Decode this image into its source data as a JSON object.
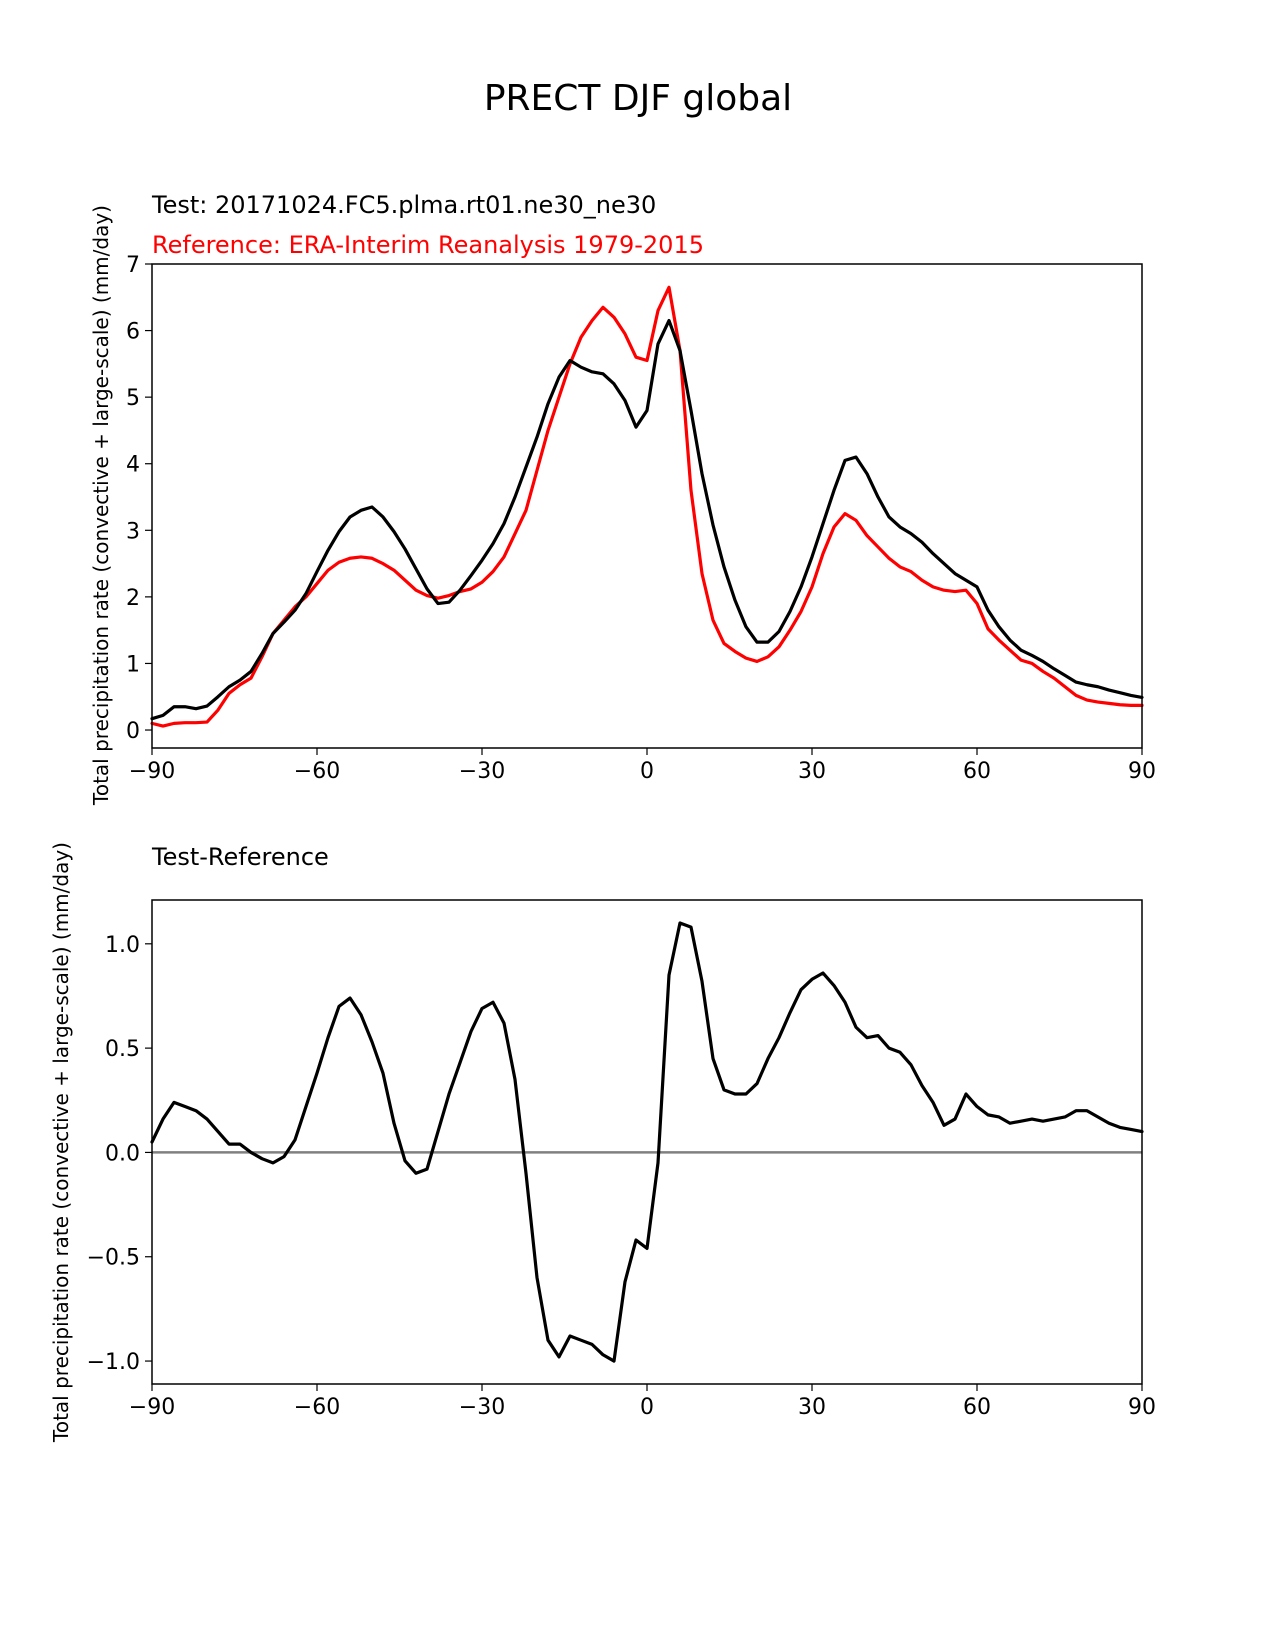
{
  "figure": {
    "title": "PRECT DJF global"
  },
  "chart_data": [
    {
      "type": "line",
      "title_test": "Test: 20171024.FC5.plma.rt01.ne30_ne30",
      "title_reference": "Reference: ERA-Interim Reanalysis 1979-2015",
      "xlabel": "",
      "ylabel": "Total precipitation rate (convective + large-scale) (mm/day)",
      "xlim": [
        -90,
        90
      ],
      "ylim": [
        -0.27,
        7
      ],
      "xticks": [
        -90,
        -60,
        -30,
        0,
        30,
        60,
        90
      ],
      "xtick_labels": [
        "−90",
        "−60",
        "−30",
        "0",
        "30",
        "60",
        "90"
      ],
      "yticks": [
        0,
        1,
        2,
        3,
        4,
        5,
        6,
        7
      ],
      "ytick_labels": [
        "0",
        "1",
        "2",
        "3",
        "4",
        "5",
        "6",
        "7"
      ],
      "grid": false,
      "series": [
        {
          "name": "Test",
          "color": "#000000",
          "x": [
            -90,
            -88,
            -86,
            -84,
            -82,
            -80,
            -78,
            -76,
            -74,
            -72,
            -70,
            -68,
            -66,
            -64,
            -62,
            -60,
            -58,
            -56,
            -54,
            -52,
            -50,
            -48,
            -46,
            -44,
            -42,
            -40,
            -38,
            -36,
            -34,
            -32,
            -30,
            -28,
            -26,
            -24,
            -22,
            -20,
            -18,
            -16,
            -14,
            -12,
            -10,
            -8,
            -6,
            -4,
            -2,
            0,
            2,
            4,
            6,
            8,
            10,
            12,
            14,
            16,
            18,
            20,
            22,
            24,
            26,
            28,
            30,
            32,
            34,
            36,
            38,
            40,
            42,
            44,
            46,
            48,
            50,
            52,
            54,
            56,
            58,
            60,
            62,
            64,
            66,
            68,
            70,
            72,
            74,
            76,
            78,
            80,
            82,
            84,
            86,
            88,
            90
          ],
          "values": [
            0.17,
            0.22,
            0.35,
            0.35,
            0.32,
            0.36,
            0.5,
            0.65,
            0.75,
            0.88,
            1.15,
            1.45,
            1.62,
            1.8,
            2.05,
            2.38,
            2.7,
            2.98,
            3.2,
            3.3,
            3.35,
            3.2,
            2.98,
            2.72,
            2.42,
            2.12,
            1.9,
            1.92,
            2.1,
            2.32,
            2.55,
            2.8,
            3.1,
            3.5,
            3.95,
            4.4,
            4.9,
            5.3,
            5.55,
            5.45,
            5.38,
            5.35,
            5.2,
            4.95,
            4.55,
            4.8,
            5.8,
            6.15,
            5.7,
            4.8,
            3.85,
            3.08,
            2.45,
            1.95,
            1.55,
            1.32,
            1.32,
            1.48,
            1.78,
            2.15,
            2.6,
            3.1,
            3.6,
            4.05,
            4.1,
            3.85,
            3.5,
            3.2,
            3.05,
            2.95,
            2.82,
            2.65,
            2.5,
            2.35,
            2.25,
            2.15,
            1.8,
            1.55,
            1.35,
            1.2,
            1.12,
            1.03,
            0.92,
            0.82,
            0.72,
            0.68,
            0.65,
            0.6,
            0.56,
            0.52,
            0.49
          ]
        },
        {
          "name": "Reference",
          "color": "#ff0000",
          "x": [
            -90,
            -88,
            -86,
            -84,
            -82,
            -80,
            -78,
            -76,
            -74,
            -72,
            -70,
            -68,
            -66,
            -64,
            -62,
            -60,
            -58,
            -56,
            -54,
            -52,
            -50,
            -48,
            -46,
            -44,
            -42,
            -40,
            -38,
            -36,
            -34,
            -32,
            -30,
            -28,
            -26,
            -24,
            -22,
            -20,
            -18,
            -16,
            -14,
            -12,
            -10,
            -8,
            -6,
            -4,
            -2,
            0,
            2,
            4,
            6,
            8,
            10,
            12,
            14,
            16,
            18,
            20,
            22,
            24,
            26,
            28,
            30,
            32,
            34,
            36,
            38,
            40,
            42,
            44,
            46,
            48,
            50,
            52,
            54,
            56,
            58,
            60,
            62,
            64,
            66,
            68,
            70,
            72,
            74,
            76,
            78,
            80,
            82,
            84,
            86,
            88,
            90
          ],
          "values": [
            0.1,
            0.06,
            0.1,
            0.11,
            0.11,
            0.12,
            0.3,
            0.55,
            0.68,
            0.78,
            1.1,
            1.45,
            1.65,
            1.85,
            2.0,
            2.2,
            2.4,
            2.52,
            2.58,
            2.6,
            2.58,
            2.5,
            2.4,
            2.25,
            2.1,
            2.02,
            1.98,
            2.02,
            2.08,
            2.12,
            2.22,
            2.38,
            2.6,
            2.95,
            3.3,
            3.9,
            4.5,
            5.0,
            5.5,
            5.9,
            6.15,
            6.35,
            6.2,
            5.95,
            5.6,
            5.55,
            6.3,
            6.65,
            5.7,
            3.6,
            2.35,
            1.65,
            1.3,
            1.18,
            1.08,
            1.03,
            1.1,
            1.25,
            1.5,
            1.78,
            2.15,
            2.65,
            3.05,
            3.25,
            3.15,
            2.92,
            2.75,
            2.58,
            2.45,
            2.38,
            2.25,
            2.15,
            2.1,
            2.08,
            2.1,
            1.9,
            1.52,
            1.35,
            1.2,
            1.05,
            1.0,
            0.88,
            0.78,
            0.65,
            0.52,
            0.45,
            0.42,
            0.4,
            0.38,
            0.37,
            0.37
          ]
        }
      ]
    },
    {
      "type": "line",
      "title": "Test-Reference",
      "xlabel": "",
      "ylabel": "Total precipitation rate (convective + large-scale) (mm/day)",
      "xlim": [
        -90,
        90
      ],
      "ylim": [
        -1.11,
        1.21
      ],
      "xticks": [
        -90,
        -60,
        -30,
        0,
        30,
        60,
        90
      ],
      "xtick_labels": [
        "−90",
        "−60",
        "−30",
        "0",
        "30",
        "60",
        "90"
      ],
      "yticks": [
        -1.0,
        -0.5,
        0.0,
        0.5,
        1.0
      ],
      "ytick_labels": [
        "−1.0",
        "−0.5",
        "0.0",
        "0.5",
        "1.0"
      ],
      "grid": false,
      "zero_line": {
        "y": 0,
        "color": "#808080"
      },
      "series": [
        {
          "name": "Test-Reference",
          "color": "#000000",
          "x": [
            -90,
            -88,
            -86,
            -84,
            -82,
            -80,
            -78,
            -76,
            -74,
            -72,
            -70,
            -68,
            -66,
            -64,
            -62,
            -60,
            -58,
            -56,
            -54,
            -52,
            -50,
            -48,
            -46,
            -44,
            -42,
            -40,
            -38,
            -36,
            -34,
            -32,
            -30,
            -28,
            -26,
            -24,
            -22,
            -20,
            -18,
            -16,
            -14,
            -12,
            -10,
            -8,
            -6,
            -4,
            -2,
            0,
            2,
            4,
            6,
            8,
            10,
            12,
            14,
            16,
            18,
            20,
            22,
            24,
            26,
            28,
            30,
            32,
            34,
            36,
            38,
            40,
            42,
            44,
            46,
            48,
            50,
            52,
            54,
            56,
            58,
            60,
            62,
            64,
            66,
            68,
            70,
            72,
            74,
            76,
            78,
            80,
            82,
            84,
            86,
            88,
            90
          ],
          "values": [
            0.05,
            0.16,
            0.24,
            0.22,
            0.2,
            0.16,
            0.1,
            0.04,
            0.04,
            0.0,
            -0.03,
            -0.05,
            -0.02,
            0.06,
            0.22,
            0.38,
            0.55,
            0.7,
            0.74,
            0.66,
            0.53,
            0.38,
            0.14,
            -0.04,
            -0.1,
            -0.08,
            0.1,
            0.28,
            0.43,
            0.58,
            0.69,
            0.72,
            0.62,
            0.35,
            -0.1,
            -0.6,
            -0.9,
            -0.98,
            -0.88,
            -0.9,
            -0.92,
            -0.97,
            -1.0,
            -0.62,
            -0.42,
            -0.46,
            -0.05,
            0.85,
            1.1,
            1.08,
            0.82,
            0.45,
            0.3,
            0.28,
            0.28,
            0.33,
            0.45,
            0.55,
            0.67,
            0.78,
            0.83,
            0.86,
            0.8,
            0.72,
            0.6,
            0.55,
            0.56,
            0.5,
            0.48,
            0.42,
            0.32,
            0.24,
            0.13,
            0.16,
            0.28,
            0.22,
            0.18,
            0.17,
            0.14,
            0.15,
            0.16,
            0.15,
            0.16,
            0.17,
            0.2,
            0.2,
            0.17,
            0.14,
            0.12,
            0.11,
            0.1
          ]
        }
      ]
    }
  ]
}
